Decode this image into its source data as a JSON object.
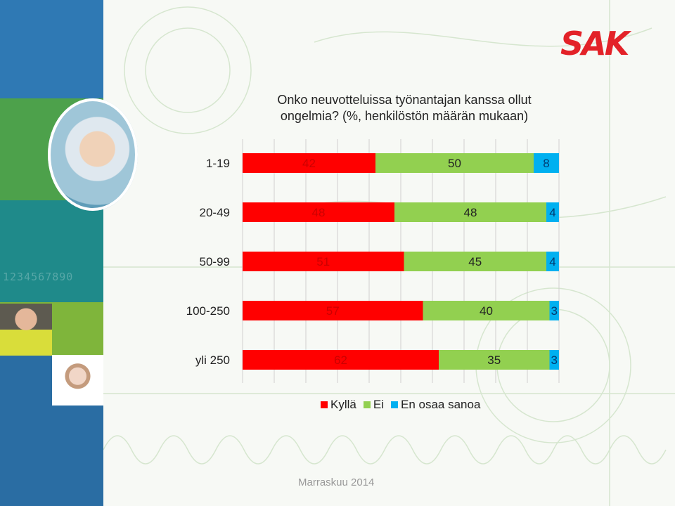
{
  "logo_text": "SAK",
  "footer": {
    "date": "Marraskuu 2014"
  },
  "colors": {
    "kylla": "#ff0000",
    "ei": "#92d050",
    "eos": "#00b0f0"
  },
  "chart_data": {
    "type": "bar",
    "orientation": "horizontal",
    "stacked": true,
    "title": "Onko neuvotteluissa työnantajan kanssa ollut ongelmia? (%, henkilöstön määrän mukaan)",
    "categories": [
      "1-19",
      "20-49",
      "50-99",
      "100-250",
      "yli 250"
    ],
    "series": [
      {
        "name": "Kyllä",
        "values": [
          42,
          48,
          51,
          57,
          62
        ],
        "color": "#ff0000"
      },
      {
        "name": "Ei",
        "values": [
          50,
          48,
          45,
          40,
          35
        ],
        "color": "#92d050"
      },
      {
        "name": "En osaa sanoa",
        "values": [
          8,
          4,
          4,
          3,
          3
        ],
        "color": "#00b0f0"
      }
    ],
    "xlim": [
      0,
      100
    ],
    "grid": true,
    "legend_position": "bottom",
    "data_labels": true
  }
}
